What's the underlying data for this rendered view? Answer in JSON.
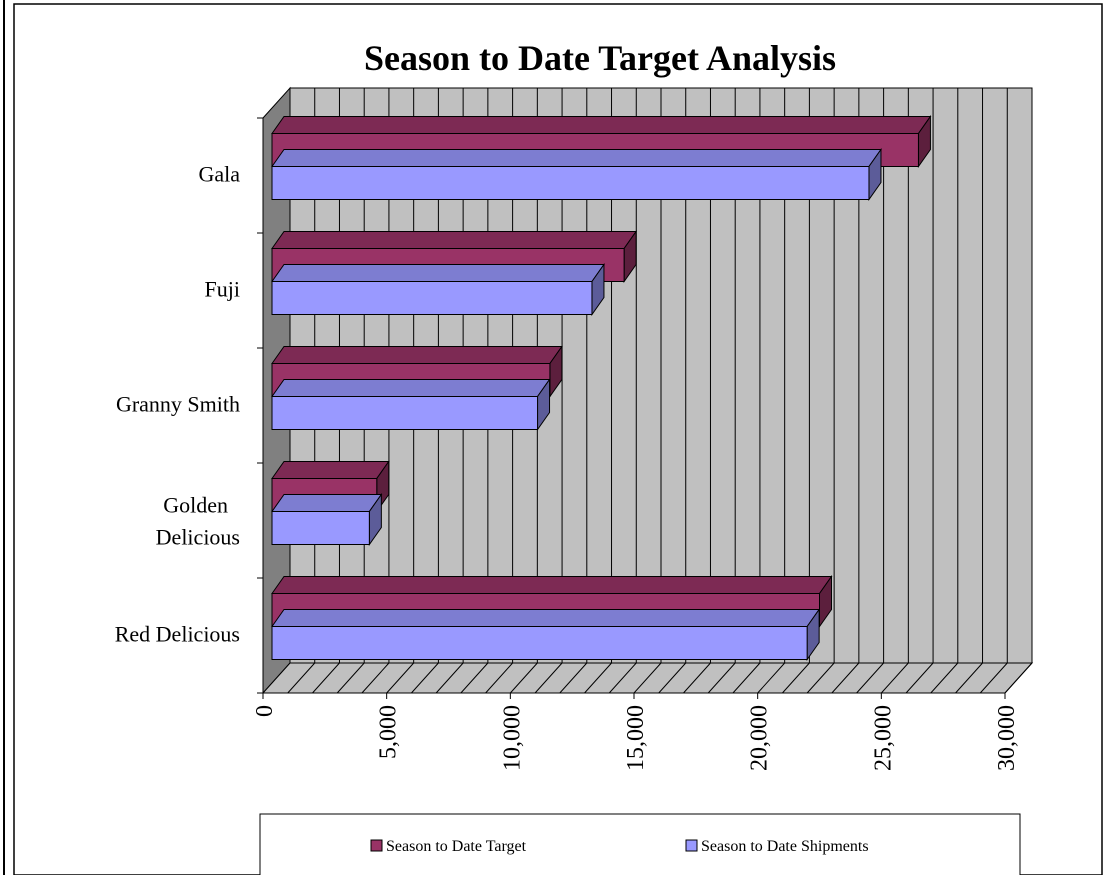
{
  "chart_data": {
    "type": "bar",
    "orientation": "horizontal",
    "three_d": true,
    "title": "Season to Date Target Analysis",
    "categories": [
      "Gala",
      "Fuji",
      "Granny Smith",
      "Golden Delicious",
      "Red Delicious"
    ],
    "series": [
      {
        "name": "Season to Date Target",
        "values": [
          26500,
          14600,
          11600,
          4600,
          22500
        ],
        "color": "#993366"
      },
      {
        "name": "Season to Date Shipments",
        "values": [
          24500,
          13300,
          11100,
          4300,
          22000
        ],
        "color": "#9999FF"
      }
    ],
    "xlim": [
      0,
      30000
    ],
    "x_ticks": [
      "0",
      "5,000",
      "10,000",
      "15,000",
      "20,000",
      "25,000",
      "30,000"
    ],
    "grid": true,
    "legend_position": "bottom",
    "colors": {
      "plot_wall": "#C0C0C0",
      "side_wall": "#808080",
      "grid_line": "#000000"
    }
  }
}
